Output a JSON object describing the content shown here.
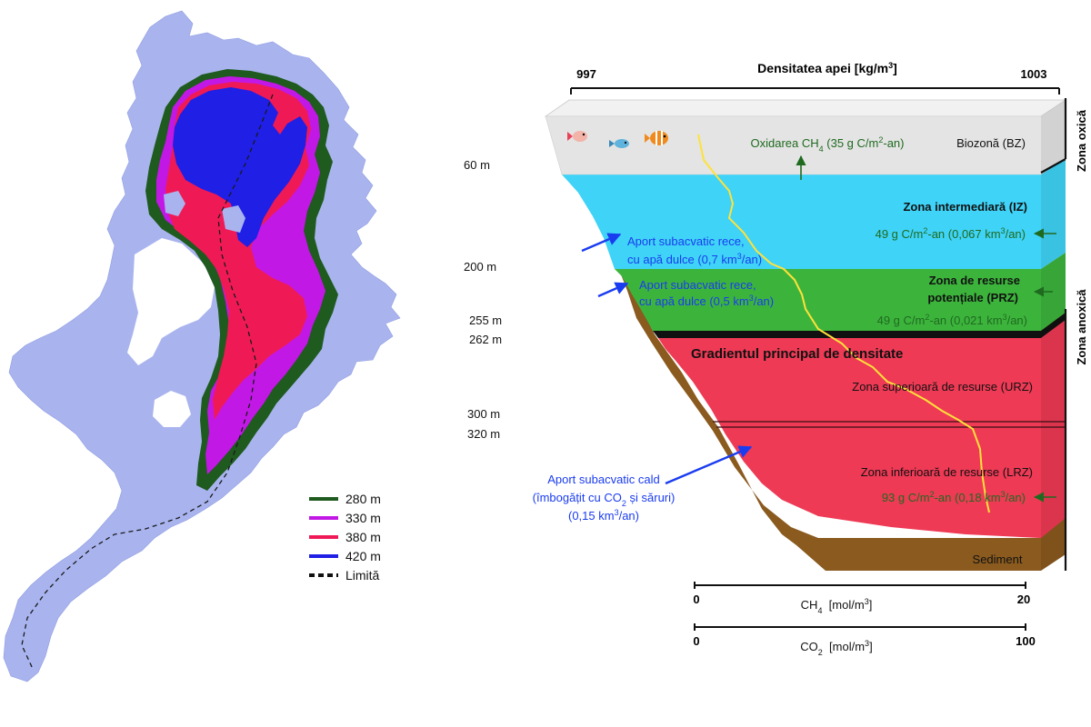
{
  "map": {
    "legend": [
      {
        "label": "280 m",
        "color": "#1f5a1f",
        "style": "solid"
      },
      {
        "label": "330 m",
        "color": "#c218e6",
        "style": "solid"
      },
      {
        "label": "380 m",
        "color": "#ef1a55",
        "style": "solid"
      },
      {
        "label": "420 m",
        "color": "#1f1fe6",
        "style": "solid"
      },
      {
        "label": "Limită",
        "color": "#111111",
        "style": "dashed"
      }
    ],
    "colors": {
      "shelf": "#a9b4ef",
      "land": "#ffffff"
    }
  },
  "column": {
    "density_axis": {
      "title": "Densitatea apei",
      "unit": "[kg/m",
      "unit_sup": "3",
      "unit_end": "]",
      "min": "997",
      "max": "1003"
    },
    "depths": [
      "60 m",
      "200 m",
      "255 m",
      "262 m",
      "300 m",
      "320 m"
    ],
    "zones": {
      "oxic": "Zona oxică",
      "anoxic": "Zona anoxică",
      "bz": "Biozonă (BZ)",
      "iz": "Zona intermediară (IZ)",
      "prz_line1": "Zona de resurse",
      "prz_line2": "potențiale (PRZ)",
      "gradient": "Gradientul principal de densitate",
      "urz": "Zona superioară de resurse (URZ)",
      "lrz": "Zona inferioară de resurse (LRZ)",
      "sediment": "Sediment"
    },
    "oxidation": {
      "pre": "Oxidarea CH",
      "sub": "4",
      "post": " (35 g C/m",
      "sup": "2",
      "end": "-an)"
    },
    "iz_flux": {
      "pre": "49 g C/m",
      "sup": "2",
      "mid": "-an (0,067 km",
      "sup2": "3",
      "end": "/an)"
    },
    "prz_flux": {
      "pre": "49 g C/m",
      "sup": "2",
      "mid": "-an (0,021 km",
      "sup2": "3",
      "end": "/an)"
    },
    "lrz_flux": {
      "pre": "93 g C/m",
      "sup": "2",
      "mid": "-an (0,18 km",
      "sup2": "3",
      "end": "/an)"
    },
    "inflow_cold1": {
      "line1": "Aport subacvatic rece,",
      "line2_pre": "cu apă dulce (0,7 km",
      "sup": "3",
      "end": "/an)"
    },
    "inflow_cold2": {
      "line1": "Aport subacvatic rece,",
      "line2_pre": "cu apă dulce (0,5 km",
      "sup": "3",
      "end": "/an)"
    },
    "inflow_warm": {
      "line1": "Aport subacvatic cald",
      "line2_pre": "(îmbogățit cu CO",
      "sub": "2",
      "line2_end": " și săruri)",
      "line3_pre": "(0,15 km",
      "sup": "3",
      "end": "/an)"
    },
    "ch4_axis": {
      "pre": "CH",
      "sub": "4",
      "unit": "  [mol/m",
      "sup": "3",
      "end": "]",
      "min": "0",
      "max": "20"
    },
    "co2_axis": {
      "pre": "CO",
      "sub": "2",
      "unit": "  [mol/m",
      "sup": "3",
      "end": "]",
      "min": "0",
      "max": "100"
    },
    "colors": {
      "bz": "#e4e4e4",
      "iz": "#3fd3f7",
      "prz": "#3cb43c",
      "rz": "#ee3a55",
      "sediment": "#8a5a1f",
      "profile": "#ffe23a",
      "flux_arrow": "#1f6a1f",
      "inflow_text": "#1a3cf0"
    }
  }
}
